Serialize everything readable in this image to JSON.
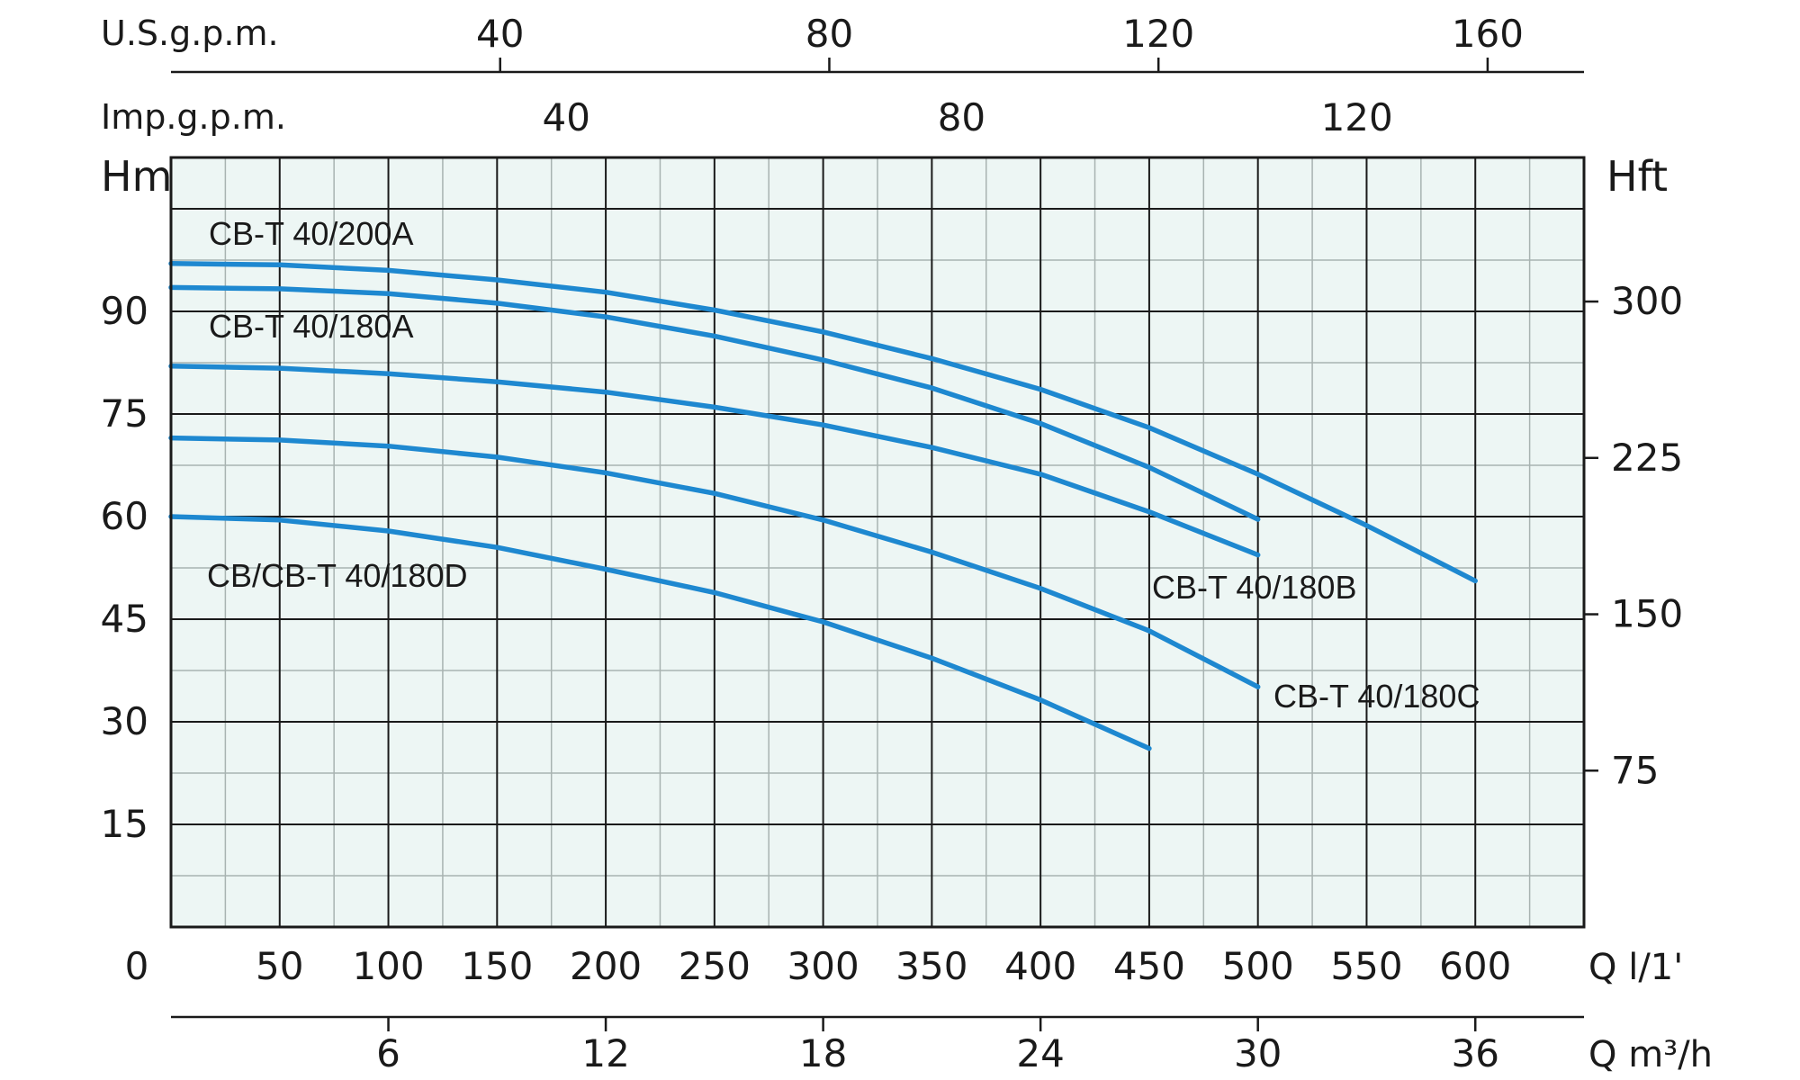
{
  "chart_data": {
    "type": "line",
    "colors": {
      "curve": "#1e88d0",
      "plot_bg": "#edf6f4",
      "grid_major": "#1a1a1a",
      "grid_minor": "#a8b3b1"
    },
    "x_bottom_unit": "Q l/1'",
    "x_bottom_ticks": [
      "0",
      "50",
      "100",
      "150",
      "200",
      "250",
      "300",
      "350",
      "400",
      "450",
      "500",
      "550",
      "600"
    ],
    "x_m3h_unit": "Q m³/h",
    "x_m3h_ticks": [
      "6",
      "12",
      "18",
      "24",
      "30",
      "36"
    ],
    "x_usgpm_unit": "U.S.g.p.m.",
    "x_usgpm_ticks": [
      "40",
      "80",
      "120",
      "160"
    ],
    "x_impgpm_unit": "Imp.g.p.m.",
    "x_impgpm_ticks": [
      "40",
      "80",
      "120"
    ],
    "y_left_unit": "Hm",
    "y_left_ticks": [
      "15",
      "30",
      "45",
      "60",
      "75",
      "90"
    ],
    "y_right_unit": "Hft",
    "y_right_ticks": [
      "75",
      "150",
      "225",
      "300"
    ],
    "xlim": [
      0,
      650
    ],
    "ylim": [
      0,
      112.5
    ],
    "series": [
      {
        "name": "CB-T 40/200A",
        "x": [
          0,
          50,
          100,
          150,
          200,
          250,
          300,
          350,
          400,
          450,
          500,
          550,
          600
        ],
        "y": [
          97,
          96.8,
          96,
          94.6,
          92.8,
          90.2,
          87,
          83.1,
          78.6,
          73,
          66.2,
          58.7,
          50.6
        ]
      },
      {
        "name": "CB-T 40/180A",
        "x": [
          0,
          50,
          100,
          150,
          200,
          250,
          300,
          350,
          400,
          450,
          500
        ],
        "y": [
          93.5,
          93.3,
          92.6,
          91.2,
          89.2,
          86.4,
          82.9,
          78.8,
          73.6,
          67.2,
          59.6
        ]
      },
      {
        "name": "CB-T 40/180B",
        "x": [
          0,
          50,
          100,
          150,
          200,
          250,
          300,
          350,
          400,
          450,
          500
        ],
        "y": [
          82,
          81.7,
          80.9,
          79.7,
          78.2,
          76,
          73.4,
          70.1,
          66.2,
          60.7,
          54.4
        ]
      },
      {
        "name": "CB-T 40/180C",
        "x": [
          0,
          50,
          100,
          150,
          200,
          250,
          300,
          350,
          400,
          450,
          500
        ],
        "y": [
          71.5,
          71.2,
          70.3,
          68.7,
          66.4,
          63.4,
          59.5,
          54.8,
          49.5,
          43.3,
          35.1
        ]
      },
      {
        "name": "CB/CB-T 40/180D",
        "x": [
          0,
          50,
          100,
          150,
          200,
          250,
          300,
          350,
          400,
          450
        ],
        "y": [
          60,
          59.5,
          57.9,
          55.5,
          52.3,
          48.9,
          44.6,
          39.3,
          33.2,
          26.1
        ]
      }
    ]
  }
}
